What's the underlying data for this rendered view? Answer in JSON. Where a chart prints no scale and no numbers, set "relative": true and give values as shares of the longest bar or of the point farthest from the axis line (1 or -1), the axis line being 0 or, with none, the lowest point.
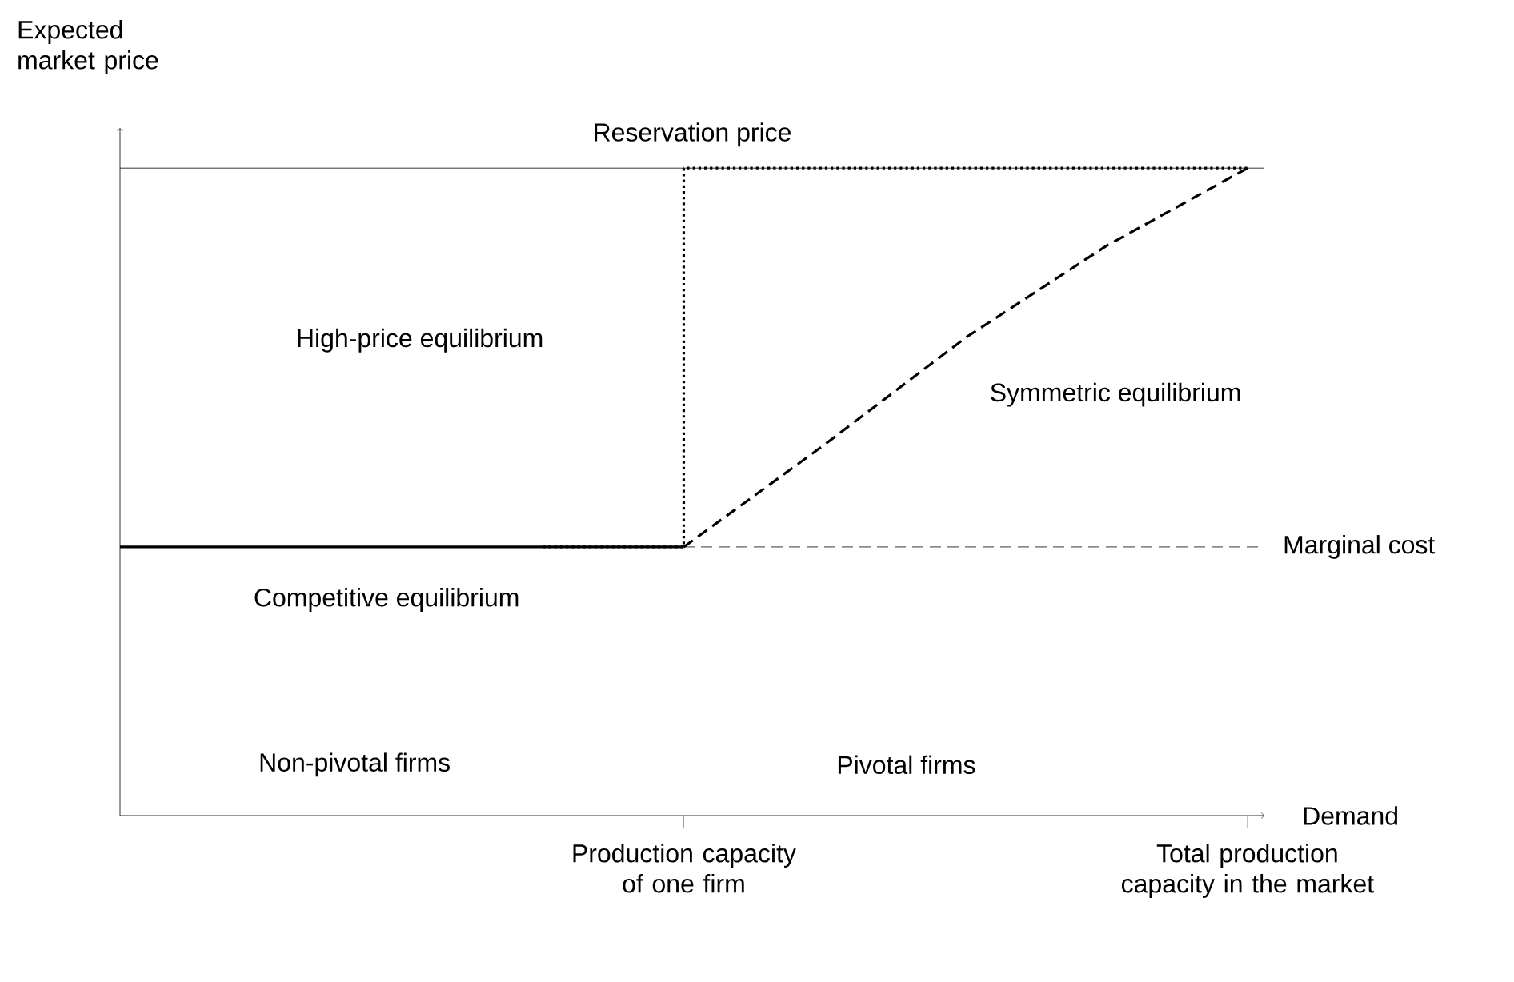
{
  "chart_data": {
    "type": "line",
    "relative": true,
    "ylabel": "Expected market price",
    "xlabel": "Demand",
    "categories": [
      null,
      null,
      null,
      null,
      "Production capacity of one firm",
      null,
      null,
      null,
      "Total production capacity in the market"
    ],
    "series": [
      {
        "type": "step",
        "color": "#000000",
        "line_style": "dotted",
        "values": [
          null,
          null,
          null,
          0.415,
          1,
          1,
          1,
          1,
          1
        ]
      },
      {
        "color": "#000000",
        "line_style": "solid",
        "values": [
          0.415,
          0.415,
          0.415,
          0.415,
          0.415,
          null,
          null,
          null,
          null
        ]
      },
      {
        "color": "#000000",
        "line_style": "dashed",
        "values": [
          null,
          null,
          null,
          null,
          0.415,
          0.573,
          0.738,
          0.88,
          1
        ]
      }
    ],
    "ref_lines": [
      {
        "axis": "y",
        "value": 1,
        "label": "Reservation price",
        "line_style": "solid",
        "color": "#000000"
      },
      {
        "axis": "y",
        "value": 0.415,
        "label": "Marginal cost",
        "line_style": "dashed",
        "color": "#000000"
      }
    ],
    "annotations": [
      "High-price equilibrium",
      "Symmetric equilibrium",
      "Competitive equilibrium",
      "Non-pivotal firms",
      "Pivotal firms"
    ],
    "marker": "none"
  }
}
